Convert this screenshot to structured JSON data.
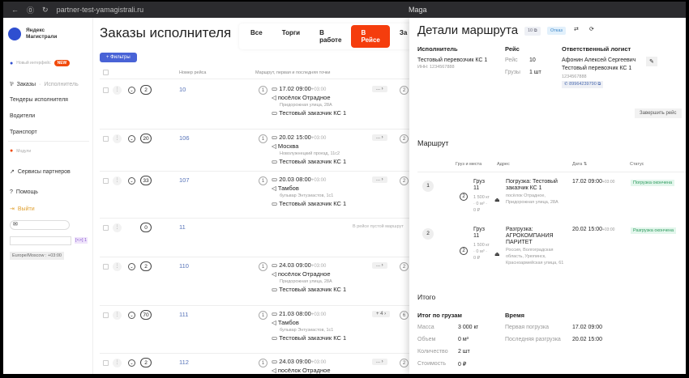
{
  "browser": {
    "url": "partner-test-yamagistrali.ru",
    "title": "Maga"
  },
  "sidebar": {
    "brand_line1": "Яндекс",
    "brand_line2": "Магистрали",
    "new_ui": "Новый интерфейс",
    "new_badge": "NEW",
    "orders": "Заказы",
    "orders_sub": "Исполнитель",
    "items": [
      "Тендеры исполнителя",
      "Водители",
      "Транспорт"
    ],
    "modules": "Модули",
    "partners": "Сервисы партнеров",
    "help": "Помощь",
    "logout": "Выйти",
    "timezone": "Europe/Moscow : +03:00",
    "tag": "[<>] 1"
  },
  "main": {
    "title": "Заказы исполнителя",
    "tabs": [
      "Все",
      "Торги",
      "В работе",
      "В Рейсе",
      "За"
    ],
    "active_tab": "В Рейсе",
    "filters": "Фильтры",
    "columns": [
      "Номер рейса",
      "Маршрут, первая и последняя точки"
    ],
    "rows": [
      {
        "count": "2",
        "num": "10",
        "date": "17.02 09:00",
        "tz": "+03:00",
        "city": "посёлок Отрадное",
        "street": "Придорожная улица, 28А",
        "client": "Тестовый заказчик КС 1",
        "more": "...",
        "last": "2"
      },
      {
        "count": "20",
        "num": "106",
        "date": "20.02 15:00",
        "tz": "+03:00",
        "city": "Москва",
        "street": "Новолужнецкий проезд, 11с2",
        "client": "Тестовый заказчик КС 1",
        "more": "...",
        "last": "2"
      },
      {
        "count": "33",
        "num": "107",
        "date": "20.03 08:00",
        "tz": "+03:00",
        "city": "Тамбов",
        "street": "бульвар Энтузиастов, 1с1",
        "client": "Тестовый заказчик КС 1",
        "more": "...",
        "last": "2"
      },
      {
        "count": "0",
        "num": "11",
        "empty": "В рейсе пустой маршрут"
      },
      {
        "count": "2",
        "num": "110",
        "date": "24.03 09:00",
        "tz": "+03:00",
        "city": "посёлок Отрадное",
        "street": "Придорожная улица, 28А",
        "client": "Тестовый заказчик КС 1",
        "more": "...",
        "last": "2"
      },
      {
        "count": "70",
        "num": "111",
        "date": "21.03 08:00",
        "tz": "+03:00",
        "city": "Тамбов",
        "street": "бульвар Энтузиастов, 1с1",
        "client": "Тестовый заказчик КС 1",
        "more": "+ 4",
        "last": "6"
      },
      {
        "count": "2",
        "num": "112",
        "date": "24.03 09:00",
        "tz": "+03:00",
        "city": "посёлок Отрадное",
        "street": "",
        "client": "",
        "more": "...",
        "last": "2"
      }
    ]
  },
  "panel": {
    "title": "Детали маршрута",
    "trip_badge": "10",
    "status_badge": "Отказ",
    "executor": {
      "label": "Исполнитель",
      "name": "Тестовый перевозчик КС 1",
      "inn": "ИНН: 1234567888"
    },
    "trip": {
      "label": "Рейс",
      "trip_label": "Рейс",
      "trip_value": "10",
      "cargo_label": "Грузы",
      "cargo_value": "1 шт"
    },
    "logist": {
      "label": "Ответственный логист",
      "name": "Афонин Алексей Сергеевич",
      "company": "Тестовый перевозчик КС 1",
      "inn": "1234567888",
      "phone": "89964239790"
    },
    "finish": "Завершить рейс",
    "route_title": "Маршрут",
    "route_cols": [
      "Груз и места",
      "Адрес",
      "Дата",
      "Статус"
    ],
    "stops": [
      {
        "n": "1",
        "places": "2",
        "cargo": "Груз 11",
        "cargo_sub": "1 500 кг · 0 м³ · 0 ₽",
        "addr": "Погрузка: Тестовый заказчик КС 1",
        "addr_sub": "посёлок Отрадное, Придорожная улица, 28А",
        "date": "17.02 09:00",
        "tz": "+03:00",
        "status": "Погрузка окончена"
      },
      {
        "n": "2",
        "places": "2",
        "cargo": "Груз 11",
        "cargo_sub": "1 500 кг · 0 м³ · 0 ₽",
        "addr": "Разгрузка: АГРОКОМПАНИЯ ПАРИТЕТ",
        "addr_sub": "Россия, Волгоградская область, Урюпинск, Красноармейская улица, 61",
        "date": "20.02 15:00",
        "tz": "+03:00",
        "status": "Разгрузка окончена"
      }
    ],
    "total_title": "Итого",
    "cargo_total": {
      "label": "Итог по грузам",
      "rows": [
        [
          "Масса",
          "3 000 кг"
        ],
        [
          "Объем",
          "0 м³"
        ],
        [
          "Количество",
          "2 шт"
        ],
        [
          "Стоимость",
          "0 ₽"
        ]
      ]
    },
    "time": {
      "label": "Время",
      "rows": [
        [
          "Первая погрузка",
          "17.02 09:00"
        ],
        [
          "Последняя разгрузка",
          "20.02 15:00"
        ]
      ]
    }
  }
}
